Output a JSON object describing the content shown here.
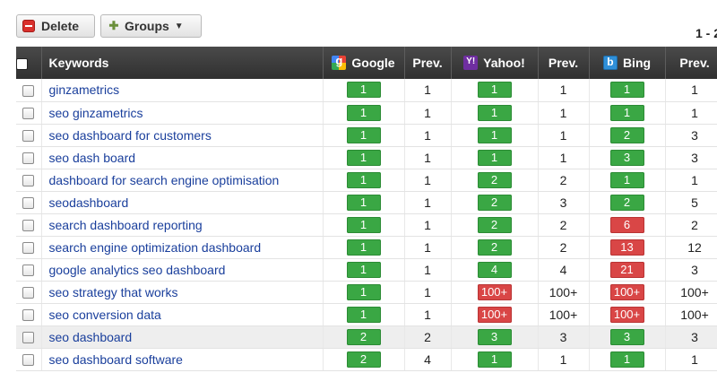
{
  "toolbar": {
    "delete_label": "Delete",
    "groups_label": "Groups",
    "pagination": "1 - 2"
  },
  "icons": {
    "delete": "minus-square-icon",
    "groups": "add-group-icon",
    "google": "google-icon",
    "yahoo": "yahoo-icon",
    "bing": "bing-icon"
  },
  "colors": {
    "rank_good": "#3aa744",
    "rank_bad": "#d94646",
    "header_bg": "#3b3b3b",
    "link": "#1a3f9c"
  },
  "table": {
    "headers": {
      "keywords": "Keywords",
      "google": "Google",
      "google_prev": "Prev.",
      "yahoo": "Yahoo!",
      "yahoo_prev": "Prev.",
      "bing": "Bing",
      "bing_prev": "Prev."
    },
    "rows": [
      {
        "keyword": "ginzametrics",
        "google": "1",
        "google_status": "green",
        "google_prev": "1",
        "yahoo": "1",
        "yahoo_status": "green",
        "yahoo_prev": "1",
        "bing": "1",
        "bing_status": "green",
        "bing_prev": "1",
        "highlighted": false
      },
      {
        "keyword": "seo ginzametrics",
        "google": "1",
        "google_status": "green",
        "google_prev": "1",
        "yahoo": "1",
        "yahoo_status": "green",
        "yahoo_prev": "1",
        "bing": "1",
        "bing_status": "green",
        "bing_prev": "1",
        "highlighted": false
      },
      {
        "keyword": "seo dashboard for customers",
        "google": "1",
        "google_status": "green",
        "google_prev": "1",
        "yahoo": "1",
        "yahoo_status": "green",
        "yahoo_prev": "1",
        "bing": "2",
        "bing_status": "green",
        "bing_prev": "3",
        "highlighted": false
      },
      {
        "keyword": "seo dash board",
        "google": "1",
        "google_status": "green",
        "google_prev": "1",
        "yahoo": "1",
        "yahoo_status": "green",
        "yahoo_prev": "1",
        "bing": "3",
        "bing_status": "green",
        "bing_prev": "3",
        "highlighted": false
      },
      {
        "keyword": "dashboard for search engine optimisation",
        "google": "1",
        "google_status": "green",
        "google_prev": "1",
        "yahoo": "2",
        "yahoo_status": "green",
        "yahoo_prev": "2",
        "bing": "1",
        "bing_status": "green",
        "bing_prev": "1",
        "highlighted": false
      },
      {
        "keyword": "seodashboard",
        "google": "1",
        "google_status": "green",
        "google_prev": "1",
        "yahoo": "2",
        "yahoo_status": "green",
        "yahoo_prev": "3",
        "bing": "2",
        "bing_status": "green",
        "bing_prev": "5",
        "highlighted": false
      },
      {
        "keyword": "search dashboard reporting",
        "google": "1",
        "google_status": "green",
        "google_prev": "1",
        "yahoo": "2",
        "yahoo_status": "green",
        "yahoo_prev": "2",
        "bing": "6",
        "bing_status": "red",
        "bing_prev": "2",
        "highlighted": false
      },
      {
        "keyword": "search engine optimization dashboard",
        "google": "1",
        "google_status": "green",
        "google_prev": "1",
        "yahoo": "2",
        "yahoo_status": "green",
        "yahoo_prev": "2",
        "bing": "13",
        "bing_status": "red",
        "bing_prev": "12",
        "highlighted": false
      },
      {
        "keyword": "google analytics seo dashboard",
        "google": "1",
        "google_status": "green",
        "google_prev": "1",
        "yahoo": "4",
        "yahoo_status": "green",
        "yahoo_prev": "4",
        "bing": "21",
        "bing_status": "red",
        "bing_prev": "3",
        "highlighted": false
      },
      {
        "keyword": "seo strategy that works",
        "google": "1",
        "google_status": "green",
        "google_prev": "1",
        "yahoo": "100+",
        "yahoo_status": "red",
        "yahoo_prev": "100+",
        "bing": "100+",
        "bing_status": "red",
        "bing_prev": "100+",
        "highlighted": false
      },
      {
        "keyword": "seo conversion data",
        "google": "1",
        "google_status": "green",
        "google_prev": "1",
        "yahoo": "100+",
        "yahoo_status": "red",
        "yahoo_prev": "100+",
        "bing": "100+",
        "bing_status": "red",
        "bing_prev": "100+",
        "highlighted": false
      },
      {
        "keyword": "seo dashboard",
        "google": "2",
        "google_status": "green",
        "google_prev": "2",
        "yahoo": "3",
        "yahoo_status": "green",
        "yahoo_prev": "3",
        "bing": "3",
        "bing_status": "green",
        "bing_prev": "3",
        "highlighted": true
      },
      {
        "keyword": "seo dashboard software",
        "google": "2",
        "google_status": "green",
        "google_prev": "4",
        "yahoo": "1",
        "yahoo_status": "green",
        "yahoo_prev": "1",
        "bing": "1",
        "bing_status": "green",
        "bing_prev": "1",
        "highlighted": false
      }
    ]
  }
}
